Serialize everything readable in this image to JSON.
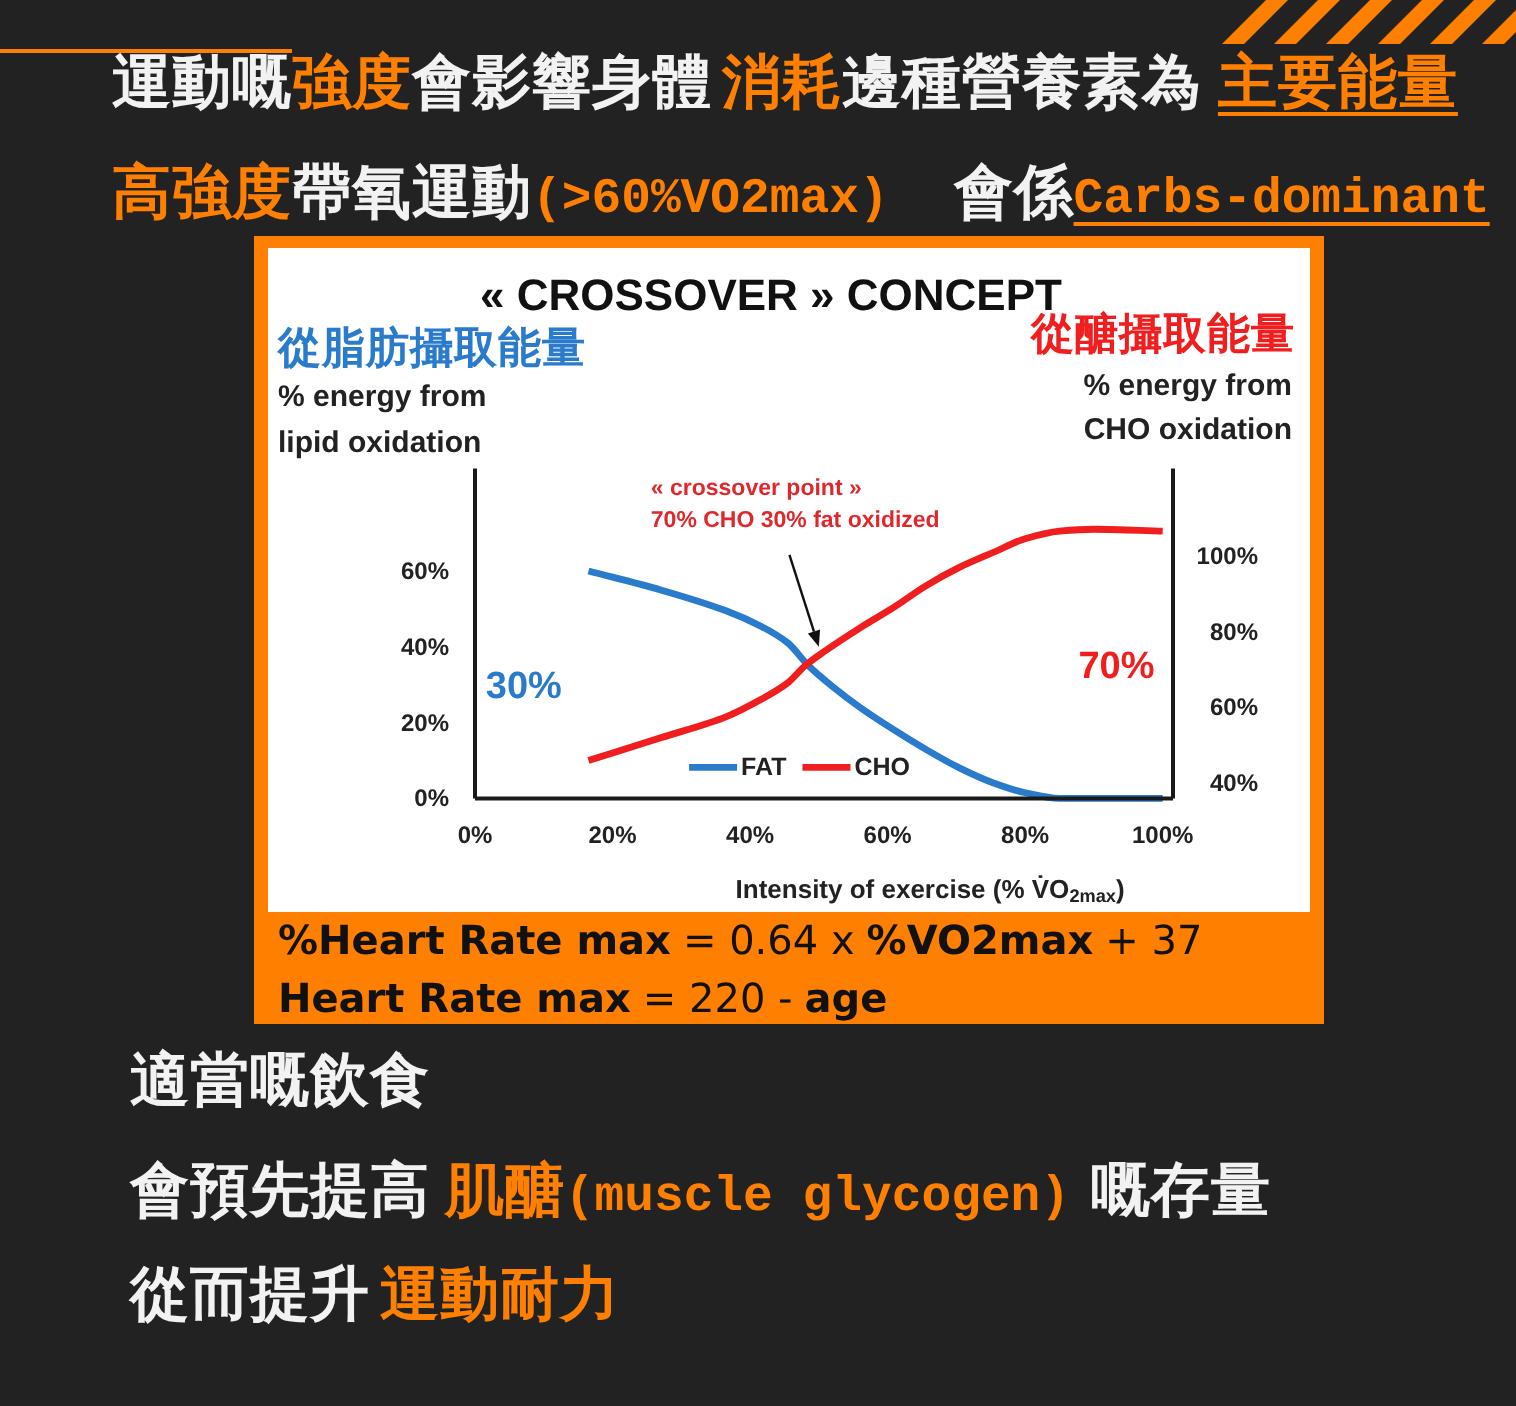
{
  "chart_data": {
    "type": "line",
    "title": "« CROSSOVER » CONCEPT",
    "xlabel": "Intensity of exercise (% V̇O$_{2max}$)",
    "ylabel": "% energy from\nlipid oxidation",
    "y2label": "% energy from\nCHO oxidation",
    "xlim": [
      0,
      101.5
    ],
    "xticks": [
      {
        "value": 0,
        "label": "0%"
      },
      {
        "value": 20,
        "label": "20%"
      },
      {
        "value": 40,
        "label": "40%"
      },
      {
        "value": 60,
        "label": "60%"
      },
      {
        "value": 80,
        "label": "80%"
      },
      {
        "value": 100,
        "label": "100%"
      }
    ],
    "ylim": [
      0,
      87
    ],
    "yticks": [
      {
        "value": 0,
        "label": "0%"
      },
      {
        "value": 20,
        "label": "20%"
      },
      {
        "value": 40,
        "label": "40%"
      },
      {
        "value": 60,
        "label": "60%"
      }
    ],
    "y2lim": [
      36,
      123
    ],
    "y2ticks": [
      {
        "value": 40,
        "label": "40%"
      },
      {
        "value": 60,
        "label": "60%"
      },
      {
        "value": 80,
        "label": "80%"
      },
      {
        "value": 100,
        "label": "100%"
      }
    ],
    "legend": "bottom",
    "series": [
      {
        "name": "FAT",
        "color": "#2b7bcd",
        "x": [
          16.5,
          27,
          36.5,
          41.5,
          45.5,
          48.5,
          52,
          56,
          61,
          65.5,
          70.5,
          75.5,
          80,
          85,
          90,
          100
        ],
        "values": [
          60,
          55,
          49.5,
          45.5,
          41,
          35,
          29.5,
          24,
          18,
          13,
          8,
          4,
          1.5,
          0,
          0,
          0
        ]
      },
      {
        "name": "CHO",
        "color": "#f01e1e",
        "axis": "y2",
        "x": [
          16.5,
          27,
          36.5,
          41.5,
          45.5,
          48,
          51,
          56,
          61,
          65.5,
          70.5,
          75.5,
          80,
          85,
          90,
          100
        ],
        "values": [
          46,
          52,
          57.5,
          62,
          66.5,
          71,
          75,
          81,
          86.5,
          92,
          97,
          101,
          104.5,
          106.5,
          107,
          106.5
        ]
      }
    ],
    "annotations": [
      "運動嘅",
      "強度",
      "會影響身體",
      "消耗",
      "邊種營養素為",
      "主要能量",
      "高強度",
      "帶氧運動",
      "(>60%VO2max)",
      "會係",
      "Carbs-dominant",
      "從脂肪攝取能量",
      "從醣攝取能量",
      {
        "text": "« crossover point »\n70% CHO 30% fat oxidized",
        "x": 50,
        "y": 40
      },
      "30%",
      "70%",
      "%Heart Rate max",
      "= 0.64 x",
      "%VO2max",
      "+ 37",
      "Heart Rate max",
      "= 220 -",
      "age",
      "適當嘅飲食",
      "會預先提高",
      "肌醣(muscle glycogen)",
      "嘅存量",
      "從而提升",
      "運動耐力"
    ]
  }
}
